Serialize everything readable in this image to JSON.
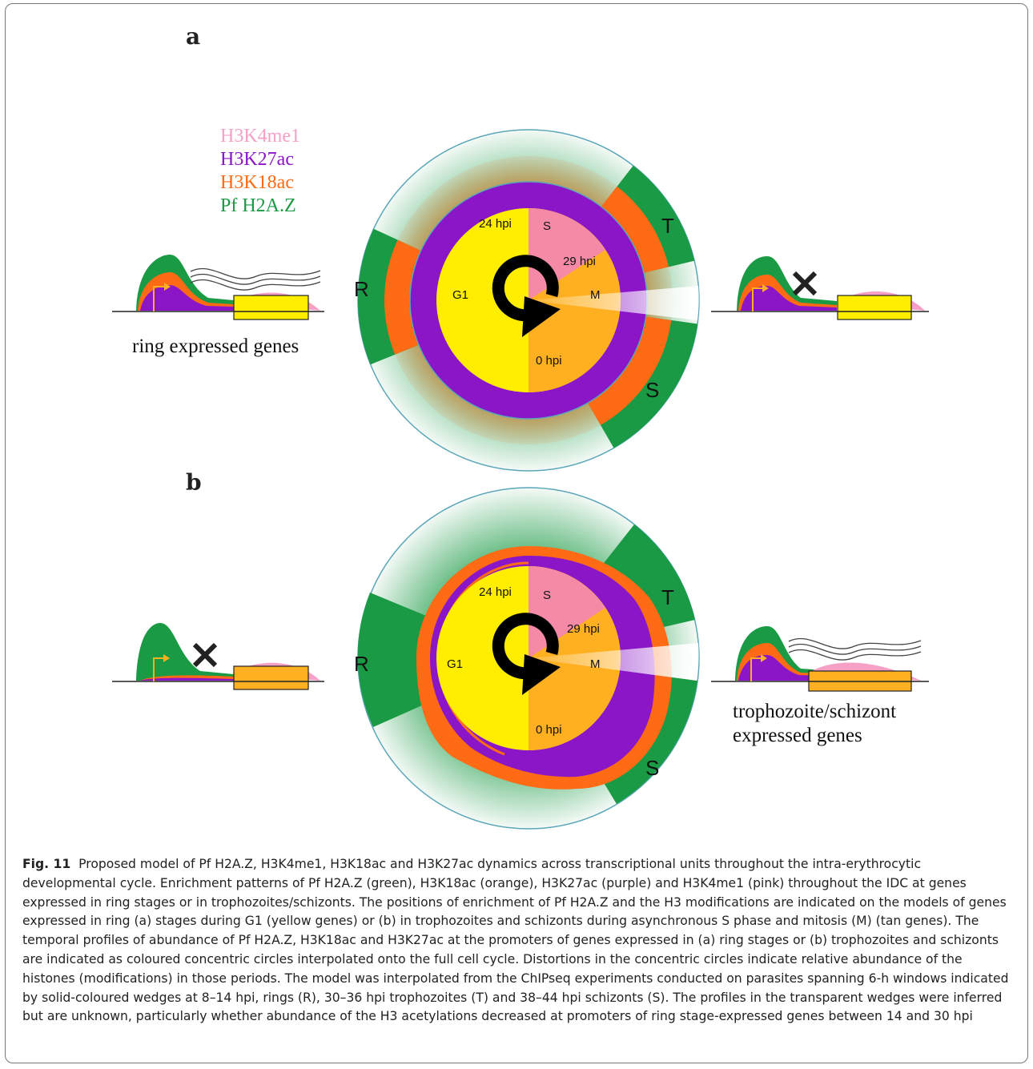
{
  "panels": {
    "a_label": "a",
    "b_label": "b"
  },
  "legend": [
    {
      "text": "H3K4me1",
      "color": "#f6a0c8"
    },
    {
      "text": "H3K27ac",
      "color": "#8a16c8"
    },
    {
      "text": "H3K18ac",
      "color": "#ff6a14"
    },
    {
      "text": "Pf H2A.Z",
      "color": "#1a9a44"
    }
  ],
  "wheel": {
    "hpi_24": "24 hpi",
    "hpi_29": "29 hpi",
    "hpi_0": "0 hpi",
    "phase_s": "S",
    "phase_m": "M",
    "phase_g1": "G1",
    "stage_r": "R",
    "stage_t": "T",
    "stage_s": "S"
  },
  "gene_labels": {
    "ring": "ring expressed genes",
    "troph_line1": "trophozoite/schizont",
    "troph_line2": "expressed genes"
  },
  "colors": {
    "green": "#1a9a44",
    "orange": "#ff6a14",
    "purple": "#8a16c8",
    "pink": "#f6a0c8",
    "yellow": "#ffee00",
    "tan": "#ffb020"
  },
  "caption": {
    "fig_label": "Fig. 11",
    "text": "Proposed model of Pf H2A.Z, H3K4me1, H3K18ac and H3K27ac dynamics across transcriptional units throughout the intra-erythrocytic developmental cycle. Enrichment patterns of Pf H2A.Z (green), H3K18ac (orange), H3K27ac (purple) and H3K4me1 (pink) throughout the IDC at genes expressed in ring stages or in trophozoites/schizonts. The positions of enrichment of Pf H2A.Z and the H3 modifications are indicated on the models of genes expressed in ring (a) stages during G1 (yellow genes) or (b) in trophozoites and schizonts during asynchronous S phase and mitosis (M) (tan genes). The temporal profiles of abundance of Pf H2A.Z, H3K18ac and H3K27ac at the promoters of genes expressed in (a) ring stages or (b) trophozoites and schizonts are indicated as coloured concentric circles interpolated onto the full cell cycle. Distortions in the concentric circles indicate relative abundance of the histones (modifications) in those periods. The model was interpolated from the ChIPseq experiments conducted on parasites spanning 6-h windows indicated by solid-coloured wedges at 8–14 hpi, rings (R), 30–36 hpi trophozoites (T) and 38–44 hpi schizonts (S). The profiles in the transparent wedges were inferred but are unknown, particularly whether abundance of the H3 acetylations decreased at promoters of ring stage-expressed genes between 14 and 30 hpi"
  }
}
